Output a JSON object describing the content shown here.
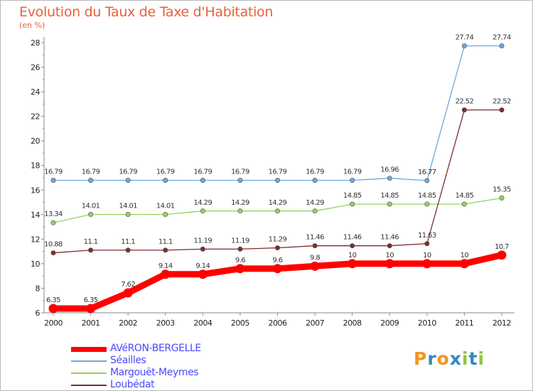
{
  "title": "Evolution du Taux de Taxe d'Habitation",
  "subtitle": "(en %)",
  "logo": {
    "letters": [
      "P",
      "r",
      "o",
      "x",
      "i",
      "t",
      "i"
    ],
    "colors": [
      "#f7931e",
      "#2e8bc0",
      "#f7931e",
      "#2e8bc0",
      "#8cc63f",
      "#2e8bc0",
      "#8cc63f"
    ]
  },
  "chart_data": {
    "type": "line",
    "x": [
      "2000",
      "2001",
      "2002",
      "2003",
      "2004",
      "2005",
      "2006",
      "2007",
      "2008",
      "2009",
      "2010",
      "2011",
      "2012"
    ],
    "ylim": [
      6,
      28
    ],
    "yticks": [
      "6",
      "8",
      "10",
      "12",
      "14",
      "16",
      "18",
      "20",
      "22",
      "24",
      "26",
      "28"
    ],
    "grid": false,
    "legend_position": "bottom-left",
    "series": [
      {
        "name": "AVéRON-BERGELLE",
        "color": "#ff0000",
        "values": [
          6.35,
          6.35,
          7.62,
          9.14,
          9.14,
          9.6,
          9.6,
          9.8,
          10,
          10,
          10,
          10,
          10.7
        ],
        "labels": [
          "6.35",
          "6.35",
          "7.62",
          "9.14",
          "9.14",
          "9.6",
          "9.6",
          "9.8",
          "10",
          "10",
          "10",
          "10",
          "10.7"
        ]
      },
      {
        "name": "Séailles",
        "color": "#6fa8dc",
        "values": [
          16.79,
          16.79,
          16.79,
          16.79,
          16.79,
          16.79,
          16.79,
          16.79,
          16.79,
          16.96,
          16.77,
          27.74,
          27.74
        ],
        "labels": [
          "16.79",
          "16.79",
          "16.79",
          "16.79",
          "16.79",
          "16.79",
          "16.79",
          "16.79",
          "16.79",
          "16.96",
          "16.77",
          "27.74",
          "27.74"
        ]
      },
      {
        "name": "Margouët-Meymes",
        "color": "#93d35b",
        "values": [
          13.34,
          14.01,
          14.01,
          14.01,
          14.29,
          14.29,
          14.29,
          14.29,
          14.85,
          14.85,
          14.85,
          14.85,
          15.35
        ],
        "labels": [
          "13.34",
          "14.01",
          "14.01",
          "14.01",
          "14.29",
          "14.29",
          "14.29",
          "14.29",
          "14.85",
          "14.85",
          "14.85",
          "14.85",
          "15.35"
        ]
      },
      {
        "name": "Loubédat",
        "color": "#7b2d2d",
        "values": [
          10.88,
          11.1,
          11.1,
          11.1,
          11.19,
          11.19,
          11.29,
          11.46,
          11.46,
          11.46,
          11.63,
          22.52,
          22.52
        ],
        "labels": [
          "10.88",
          "11.1",
          "11.1",
          "11.1",
          "11.19",
          "11.19",
          "11.29",
          "11.46",
          "11.46",
          "11.46",
          "11.63",
          "22.52",
          "22.52"
        ]
      }
    ]
  }
}
